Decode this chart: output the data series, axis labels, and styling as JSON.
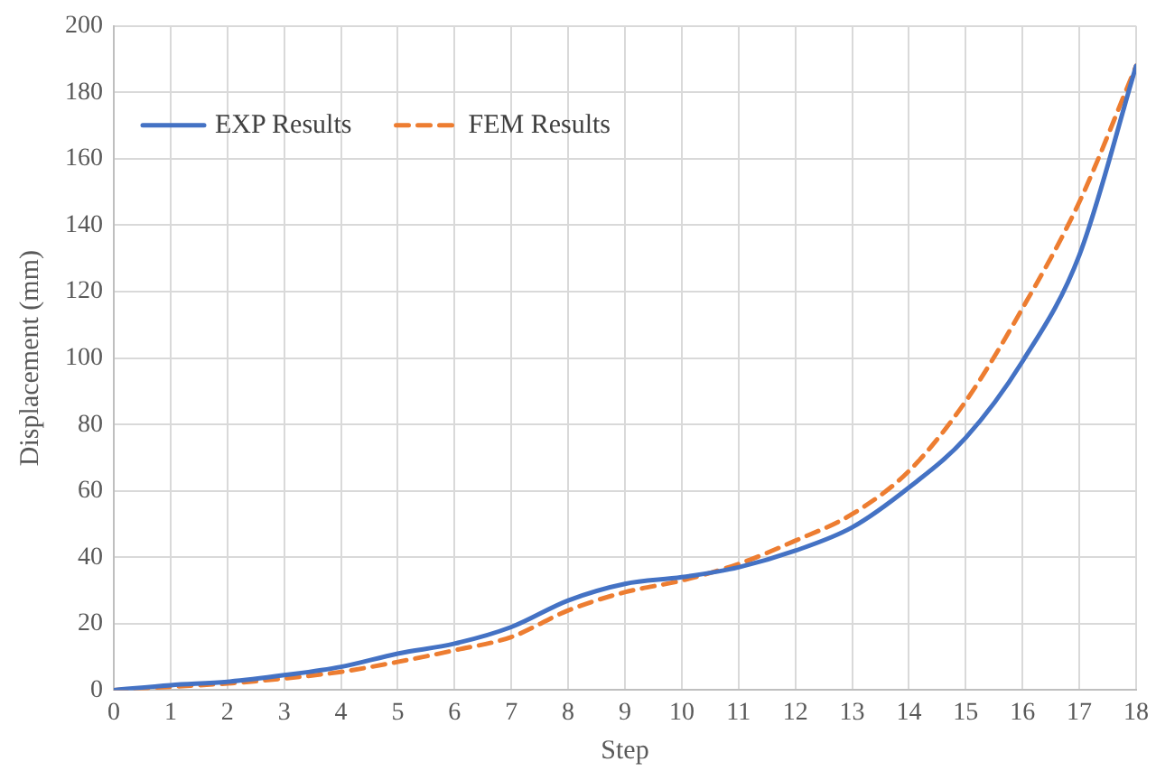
{
  "chart_data": {
    "type": "line",
    "xlabel": "Step",
    "ylabel": "Displacement (mm)",
    "x": [
      0,
      1,
      2,
      3,
      4,
      5,
      6,
      7,
      8,
      9,
      10,
      11,
      12,
      13,
      14,
      15,
      16,
      17,
      18
    ],
    "series": [
      {
        "name": "EXP Results",
        "color": "#4472c4",
        "line_style": "solid",
        "values": [
          0,
          1.5,
          2.5,
          4.5,
          7,
          11,
          14,
          19,
          27,
          32,
          34,
          37,
          42,
          49,
          61,
          76,
          99,
          131,
          188
        ]
      },
      {
        "name": "FEM Results",
        "color": "#ed7d31",
        "line_style": "dashed",
        "values": [
          0,
          1,
          2,
          3.5,
          5.5,
          8.5,
          12,
          16,
          24,
          29.5,
          33,
          38,
          45,
          53,
          66,
          87,
          115,
          147,
          188
        ]
      }
    ],
    "xlim": [
      0,
      18
    ],
    "xticks": [
      0,
      1,
      2,
      3,
      4,
      5,
      6,
      7,
      8,
      9,
      10,
      11,
      12,
      13,
      14,
      15,
      16,
      17,
      18
    ],
    "ylim": [
      0,
      200
    ],
    "yticks": [
      0,
      20,
      40,
      60,
      80,
      100,
      120,
      140,
      160,
      180,
      200
    ],
    "grid": true,
    "legend": "top left",
    "marker": "none"
  }
}
